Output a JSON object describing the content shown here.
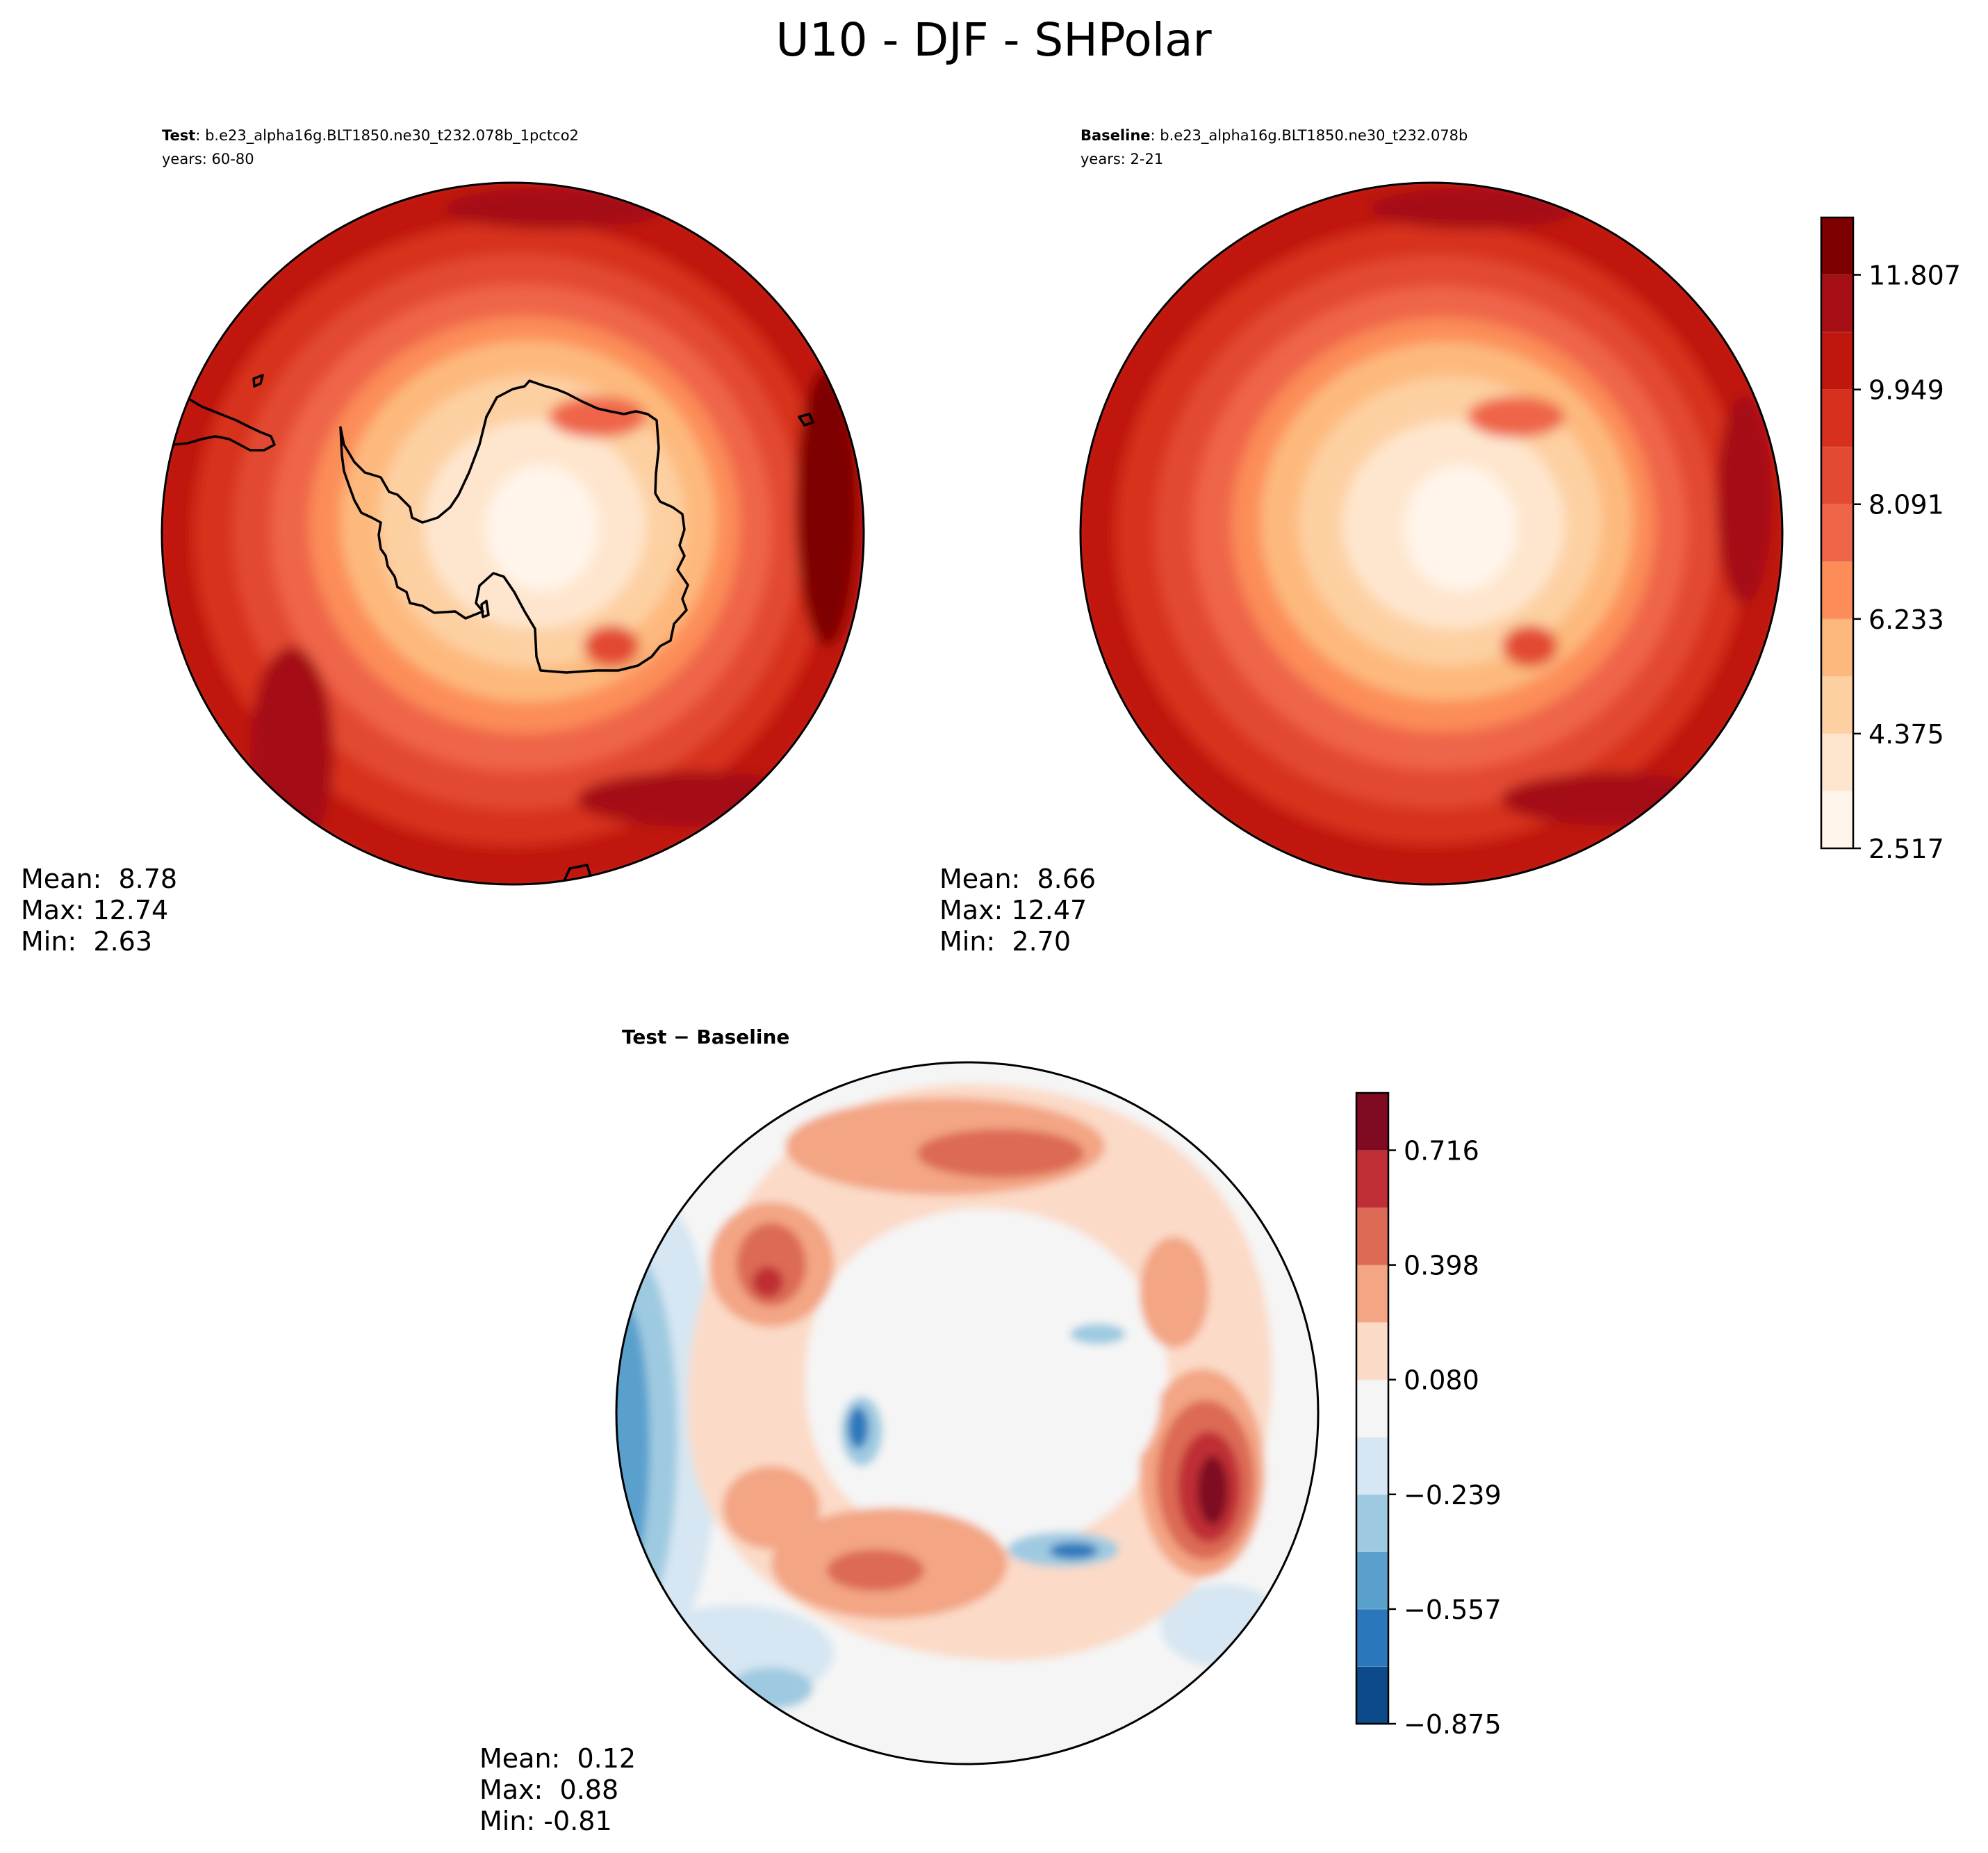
{
  "figure": {
    "title": "U10 - DJF - SHPolar"
  },
  "panels": [
    {
      "id": "test",
      "label_bold": "Test",
      "label_rest": ": b.e23_alpha16g.BLT1850.ne30_t232.078b_1pctco2",
      "years": "years: 60-80",
      "stats": {
        "mean": "Mean:  8.78",
        "max": "Max: 12.74",
        "min": "Min:  2.63"
      },
      "field_mean": 8.78,
      "field_max": 12.74,
      "field_min": 2.63
    },
    {
      "id": "baseline",
      "label_bold": "Baseline",
      "label_rest": ": b.e23_alpha16g.BLT1850.ne30_t232.078b",
      "years": "years: 2-21",
      "stats": {
        "mean": "Mean:  8.66",
        "max": "Max: 12.47",
        "min": "Min:  2.70"
      },
      "field_mean": 8.66,
      "field_max": 12.47,
      "field_min": 2.7
    },
    {
      "id": "diff",
      "title": "Test − Baseline",
      "stats": {
        "mean": "Mean:  0.12",
        "max": "Max:  0.88",
        "min": "Min: -0.81"
      },
      "field_mean": 0.12,
      "field_max": 0.88,
      "field_min": -0.81
    }
  ],
  "colorbars": {
    "main": {
      "tick_labels": [
        "2.517",
        "4.375",
        "6.233",
        "8.091",
        "9.949",
        "11.807"
      ],
      "levels": 11,
      "colors": [
        "#fff5eb",
        "#fee6ce",
        "#fdd0a2",
        "#fdb97d",
        "#fc8d59",
        "#ef6548",
        "#e34a33",
        "#d7301f",
        "#c0160d",
        "#a50f15",
        "#7f0000"
      ]
    },
    "diff": {
      "tick_labels": [
        "−0.875",
        "−0.557",
        "−0.239",
        "0.080",
        "0.398",
        "0.716"
      ],
      "levels": 11,
      "colors": [
        "#0d4a8a",
        "#2a78bb",
        "#5aa0cd",
        "#9ecae1",
        "#d6e6f2",
        "#f5f5f5",
        "#fbdac7",
        "#f3a584",
        "#dc6a55",
        "#bf2d35",
        "#7f0a22"
      ]
    }
  }
}
